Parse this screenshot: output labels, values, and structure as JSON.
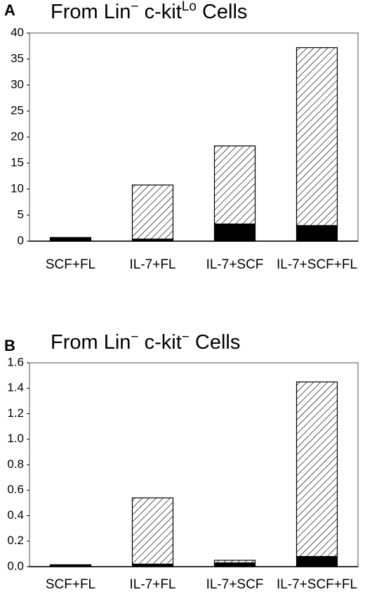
{
  "chart_data": [
    {
      "type": "bar",
      "panel": "A",
      "title": [
        "From Lin",
        "−",
        " c-kit",
        "Lo",
        " Cells"
      ],
      "categories": [
        "SCF+FL",
        "IL-7+FL",
        "IL-7+SCF",
        "IL-7+SCF+FL"
      ],
      "stacked": true,
      "series": [
        {
          "color": "#000000",
          "values": [
            0.7,
            0.4,
            3.3,
            3.0
          ]
        },
        {
          "color": "#ffffff",
          "fill": "hatched",
          "values": [
            0,
            10.4,
            15.0,
            34.2
          ]
        }
      ],
      "ylim": [
        0,
        40
      ],
      "yticks": [
        0,
        5,
        10,
        15,
        20,
        25,
        30,
        35,
        40
      ]
    },
    {
      "type": "bar",
      "panel": "B",
      "title": [
        "From Lin",
        "−",
        " c-kit",
        "−",
        " Cells"
      ],
      "categories": [
        "SCF+FL",
        "IL-7+FL",
        "IL-7+SCF",
        "IL-7+SCF+FL"
      ],
      "stacked": true,
      "series": [
        {
          "color": "#000000",
          "values": [
            0.015,
            0.02,
            0.03,
            0.08
          ]
        },
        {
          "color": "#ffffff",
          "fill": "hatched",
          "values": [
            0,
            0.52,
            0.02,
            1.37
          ]
        }
      ],
      "ylim": [
        0,
        1.6
      ],
      "yticks": [
        {
          "value": 0,
          "label": "0.0"
        },
        0.2,
        0.4,
        0.6,
        0.8,
        {
          "value": 1,
          "label": "1.0"
        },
        1.2,
        1.4,
        1.6
      ]
    }
  ]
}
